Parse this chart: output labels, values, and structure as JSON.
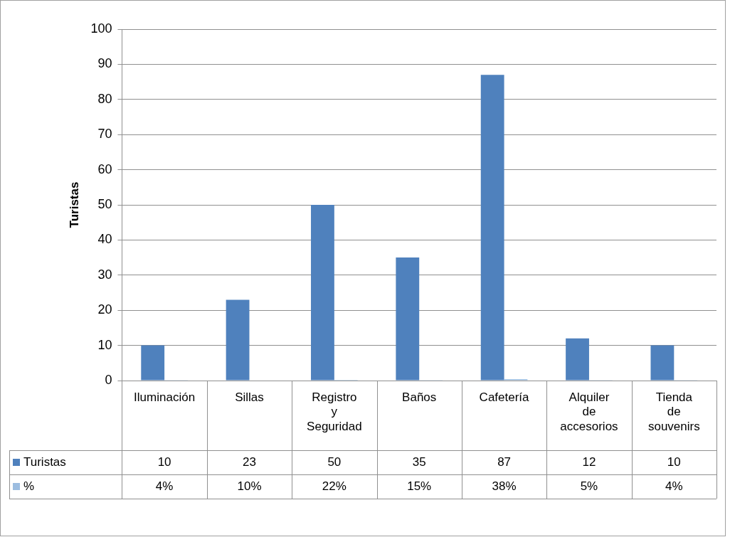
{
  "chart_data": {
    "type": "bar",
    "ylabel": "Turistas",
    "categories": [
      "Iluminación",
      "Sillas",
      "Registro y Seguridad",
      "Baños",
      "Cafetería",
      "Alquiler de accesorios",
      "Tienda de souvenirs"
    ],
    "series": [
      {
        "name": "Turistas",
        "color": "#4f81bd",
        "values": [
          10,
          23,
          50,
          35,
          87,
          12,
          10
        ],
        "value_labels": [
          "10",
          "23",
          "50",
          "35",
          "87",
          "12",
          "10"
        ]
      },
      {
        "name": "%",
        "color": "#9cbde0",
        "values": [
          0.04,
          0.1,
          0.22,
          0.15,
          0.38,
          0.05,
          0.04
        ],
        "value_labels": [
          "4%",
          "10%",
          "22%",
          "15%",
          "38%",
          "5%",
          "4%"
        ]
      }
    ],
    "ylim": [
      0,
      100
    ],
    "yticks": [
      0,
      10,
      20,
      30,
      40,
      50,
      60,
      70,
      80,
      90,
      100
    ],
    "grid": "y",
    "legend": "bottom"
  }
}
